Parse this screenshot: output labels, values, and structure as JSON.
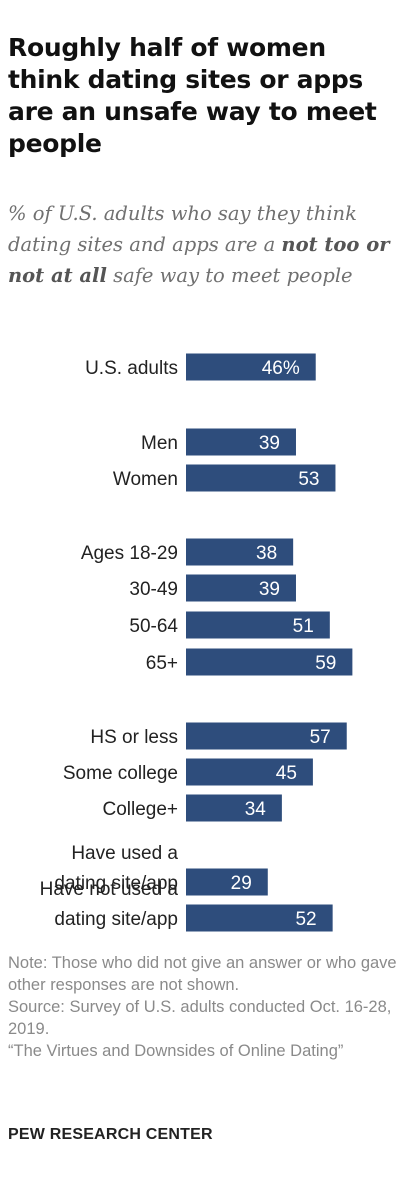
{
  "header": {
    "title": "Roughly half of women think dating sites or apps are an unsafe way to meet people",
    "subtitle_pre": "% of U.S. adults who say they think dating sites and apps are a ",
    "subtitle_bold": "not too or not at all",
    "subtitle_post": " safe way to meet people"
  },
  "chart_data": {
    "type": "bar",
    "orientation": "horizontal",
    "title": "Roughly half of women think dating sites or apps are an unsafe way to meet people",
    "categories": [
      [
        "U.S. adults"
      ],
      [
        "Men"
      ],
      [
        "Women"
      ],
      [
        "Ages 18-29"
      ],
      [
        "30-49"
      ],
      [
        "50-64"
      ],
      [
        "65+"
      ],
      [
        "HS or less"
      ],
      [
        "Some college"
      ],
      [
        "College+"
      ],
      [
        "Have used a",
        "dating site/app"
      ],
      [
        "Have not used a",
        "dating site/app"
      ]
    ],
    "values": [
      46,
      39,
      53,
      38,
      39,
      51,
      59,
      57,
      45,
      34,
      29,
      52
    ],
    "value_labels": [
      "46%",
      "39",
      "53",
      "38",
      "39",
      "51",
      "59",
      "57",
      "45",
      "34",
      "29",
      "52"
    ],
    "groups": [
      {
        "name": "",
        "members": [
          0
        ]
      },
      {
        "name": "",
        "members": [
          1,
          2
        ]
      },
      {
        "name": "",
        "members": [
          3,
          4,
          5,
          6
        ]
      },
      {
        "name": "",
        "members": [
          7,
          8,
          9
        ]
      },
      {
        "name": "",
        "members": [
          10,
          11
        ]
      }
    ],
    "xlim": [
      0,
      100
    ],
    "grid": false,
    "bar_color": "#2e4d7c"
  },
  "footer": {
    "note": "Note: Those who did not give an answer or who gave other responses are not shown.",
    "source": "Source: Survey of U.S. adults conducted Oct. 16-28, 2019.",
    "report": "“The Virtues and Downsides of Online Dating”",
    "logo": "PEW RESEARCH CENTER"
  }
}
